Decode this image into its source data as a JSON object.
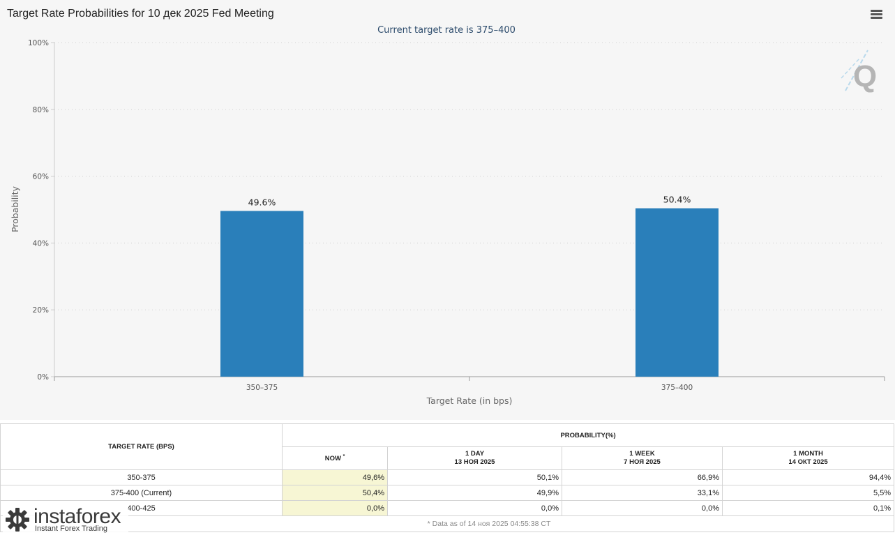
{
  "chart_data": {
    "type": "bar",
    "title": "Target Rate Probabilities for 10 дек 2025 Fed Meeting",
    "subtitle": "Current target rate is 375–400",
    "categories": [
      "350–375",
      "375–400"
    ],
    "values": [
      49.6,
      50.4
    ],
    "data_labels": [
      "49.6%",
      "50.4%"
    ],
    "xlabel": "Target Rate (in bps)",
    "ylabel": "Probability",
    "ylim": [
      0,
      100
    ],
    "yticks": [
      0,
      20,
      40,
      60,
      80,
      100
    ],
    "ytick_labels": [
      "0%",
      "20%",
      "40%",
      "60%",
      "80%",
      "100%"
    ],
    "bar_color": "#2a7fba",
    "grid": true
  },
  "toolbar": {
    "menu_icon": "hamburger-menu-icon"
  },
  "table": {
    "target_rate_header": "TARGET RATE (BPS)",
    "probability_header": "PROBABILITY(%)",
    "columns": [
      {
        "line1": "NOW",
        "line2": "",
        "sup": "*"
      },
      {
        "line1": "1 DAY",
        "line2": "13 НОЯ 2025",
        "sup": ""
      },
      {
        "line1": "1 WEEK",
        "line2": "7 НОЯ 2025",
        "sup": ""
      },
      {
        "line1": "1 MONTH",
        "line2": "14 ОКТ 2025",
        "sup": ""
      }
    ],
    "rows": [
      {
        "rate": "350-375",
        "values": [
          "49,6%",
          "50,1%",
          "66,9%",
          "94,4%"
        ]
      },
      {
        "rate": "375-400 (Current)",
        "values": [
          "50,4%",
          "49,9%",
          "33,1%",
          "5,5%"
        ]
      },
      {
        "rate": "400-425",
        "values": [
          "0,0%",
          "0,0%",
          "0,0%",
          "0,1%"
        ]
      }
    ],
    "footnote": "* Data as of 14 ноя 2025 04:55:38 CT"
  },
  "watermark": {
    "brand": "instaforex",
    "tagline": "Instant Forex Trading",
    "icon": "instaforex-gear-logo-icon"
  },
  "logo": {
    "letter": "Q",
    "icon": "cme-q-logo-icon"
  }
}
